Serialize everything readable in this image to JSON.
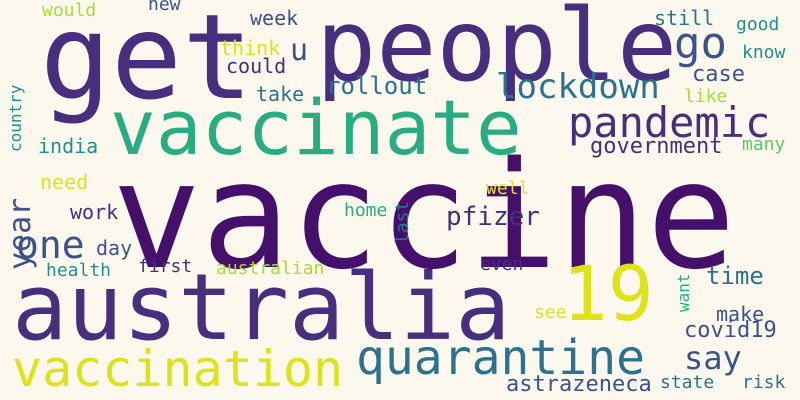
{
  "palette": {
    "background": "#fdf8ee",
    "dark_purple": "#44106b",
    "indigo": "#472f7d",
    "blue": "#3b528b",
    "steel_blue": "#2c728e",
    "teal": "#21908d",
    "green": "#27ad81",
    "light_green": "#5cc863",
    "yellow_green": "#a8db34",
    "yellow": "#dde318"
  },
  "words": [
    {
      "text": "vaccine",
      "color": "#44106b"
    },
    {
      "text": "get",
      "color": "#472f7d"
    },
    {
      "text": "people",
      "color": "#472f7d"
    },
    {
      "text": "australia",
      "color": "#472f7d"
    },
    {
      "text": "vaccinate",
      "color": "#27ad81"
    },
    {
      "text": "vaccination",
      "color": "#dde318"
    },
    {
      "text": "19",
      "color": "#dde318"
    },
    {
      "text": "quarantine",
      "color": "#2c728e"
    },
    {
      "text": "pandemic",
      "color": "#472f7d"
    },
    {
      "text": "go",
      "color": "#3b528b"
    },
    {
      "text": "lockdown",
      "color": "#2c728e"
    },
    {
      "text": "one",
      "color": "#3b528b"
    },
    {
      "text": "say",
      "color": "#3b528b"
    },
    {
      "text": "u",
      "color": "#3b528b"
    },
    {
      "text": "year",
      "color": "#3b528b"
    },
    {
      "text": "government",
      "color": "#472f7d"
    },
    {
      "text": "rollout",
      "color": "#2c728e"
    },
    {
      "text": "pfizer",
      "color": "#472f7d"
    },
    {
      "text": "covid19",
      "color": "#3b528b"
    },
    {
      "text": "astrazeneca",
      "color": "#3b528b"
    },
    {
      "text": "case",
      "color": "#3b528b"
    },
    {
      "text": "make",
      "color": "#3b528b"
    },
    {
      "text": "time",
      "color": "#2c728e"
    },
    {
      "text": "week",
      "color": "#3b528b"
    },
    {
      "text": "still",
      "color": "#2c728e"
    },
    {
      "text": "india",
      "color": "#21908d"
    },
    {
      "text": "australian",
      "color": "#a8db34"
    },
    {
      "text": "work",
      "color": "#472f7d"
    },
    {
      "text": "take",
      "color": "#2c728e"
    },
    {
      "text": "could",
      "color": "#472f7d"
    },
    {
      "text": "think",
      "color": "#dde318"
    },
    {
      "text": "need",
      "color": "#dde318"
    },
    {
      "text": "first",
      "color": "#472f7d"
    },
    {
      "text": "day",
      "color": "#3b528b"
    },
    {
      "text": "health",
      "color": "#21908d"
    },
    {
      "text": "home",
      "color": "#27ad81"
    },
    {
      "text": "last",
      "color": "#2c728e"
    },
    {
      "text": "even",
      "color": "#472f7d"
    },
    {
      "text": "well",
      "color": "#dde318"
    },
    {
      "text": "like",
      "color": "#a8db34"
    },
    {
      "text": "good",
      "color": "#21908d"
    },
    {
      "text": "know",
      "color": "#21908d"
    },
    {
      "text": "many",
      "color": "#5cc863"
    },
    {
      "text": "want",
      "color": "#27ad81"
    },
    {
      "text": "see",
      "color": "#dde318"
    },
    {
      "text": "state",
      "color": "#2c728e"
    },
    {
      "text": "risk",
      "color": "#2c728e"
    },
    {
      "text": "would",
      "color": "#a8db34"
    },
    {
      "text": "new",
      "color": "#3b528b"
    },
    {
      "text": "country",
      "color": "#21908d"
    }
  ]
}
